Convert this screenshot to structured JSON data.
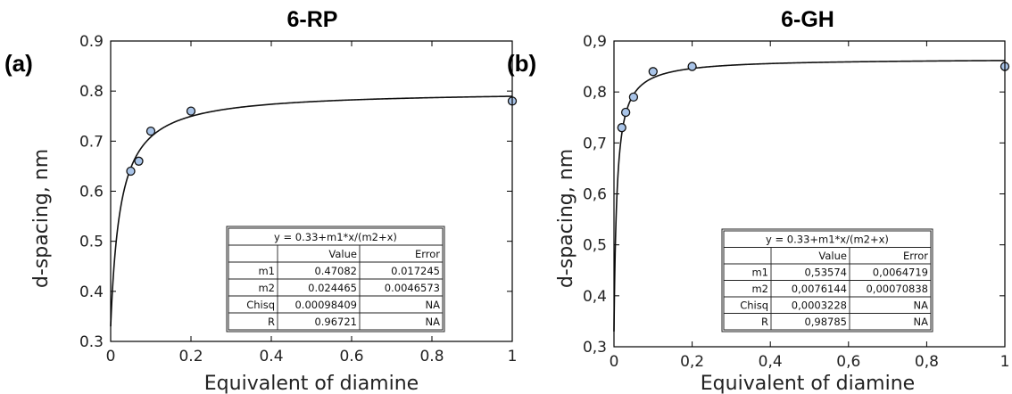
{
  "chart_data": [
    {
      "type": "scatter",
      "panel_label": "(a)",
      "title": "6-RP",
      "xlabel": "Equivalent of diamine",
      "ylabel": "d-spacing, nm",
      "xlim": [
        0,
        1
      ],
      "ylim": [
        0.3,
        0.9
      ],
      "xticks": [
        "0",
        "0.2",
        "0.4",
        "0.6",
        "0.8",
        "1"
      ],
      "yticks": [
        "0.3",
        "0.4",
        "0.5",
        "0.6",
        "0.7",
        "0.8",
        "0.9"
      ],
      "x": [
        0.05,
        0.07,
        0.1,
        0.2,
        1.0
      ],
      "y": [
        0.64,
        0.66,
        0.72,
        0.76,
        0.78
      ],
      "fit": {
        "offset": 0.33,
        "m1": 0.47082,
        "m2": 0.024465
      },
      "fit_table": {
        "equation": "y = 0.33+m1*x/(m2+x)",
        "headers": [
          "",
          "Value",
          "Error"
        ],
        "rows": [
          [
            "m1",
            "0.47082",
            "0.017245"
          ],
          [
            "m2",
            "0.024465",
            "0.0046573"
          ],
          [
            "Chisq",
            "0.00098409",
            "NA"
          ],
          [
            "R",
            "0.96721",
            "NA"
          ]
        ]
      },
      "grid": false
    },
    {
      "type": "scatter",
      "panel_label": "(b)",
      "title": "6-GH",
      "xlabel": "Equivalent of diamine",
      "ylabel": "d-spacing, nm",
      "xlim": [
        0,
        1
      ],
      "ylim": [
        0.3,
        0.9
      ],
      "xticks": [
        "0",
        "0,2",
        "0,4",
        "0,6",
        "0,8",
        "1"
      ],
      "yticks": [
        "0,3",
        "0,4",
        "0,5",
        "0,6",
        "0,7",
        "0,8",
        "0,9"
      ],
      "x": [
        0.02,
        0.03,
        0.05,
        0.1,
        0.2,
        1.0
      ],
      "y": [
        0.73,
        0.76,
        0.79,
        0.84,
        0.85,
        0.85
      ],
      "fit": {
        "offset": 0.33,
        "m1": 0.53574,
        "m2": 0.0076144
      },
      "fit_table": {
        "equation": "y = 0.33+m1*x/(m2+x)",
        "headers": [
          "",
          "Value",
          "Error"
        ],
        "rows": [
          [
            "m1",
            "0,53574",
            "0,0064719"
          ],
          [
            "m2",
            "0,0076144",
            "0,00070838"
          ],
          [
            "Chisq",
            "0,0003228",
            "NA"
          ],
          [
            "R",
            "0,98785",
            "NA"
          ]
        ]
      },
      "grid": false
    }
  ]
}
